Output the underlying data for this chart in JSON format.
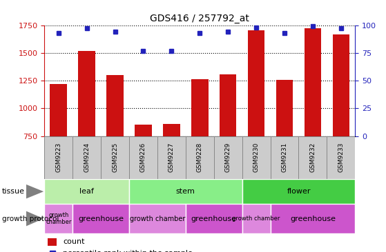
{
  "title": "GDS416 / 257792_at",
  "samples": [
    "GSM9223",
    "GSM9224",
    "GSM9225",
    "GSM9226",
    "GSM9227",
    "GSM9228",
    "GSM9229",
    "GSM9230",
    "GSM9231",
    "GSM9232",
    "GSM9233"
  ],
  "counts": [
    1220,
    1520,
    1300,
    855,
    860,
    1265,
    1305,
    1705,
    1255,
    1720,
    1665
  ],
  "percentiles": [
    93,
    97,
    94,
    77,
    77,
    93,
    94,
    98,
    93,
    99,
    97
  ],
  "ylim_left": [
    750,
    1750
  ],
  "ylim_right": [
    0,
    100
  ],
  "yticks_left": [
    750,
    1000,
    1250,
    1500,
    1750
  ],
  "yticks_right": [
    0,
    25,
    50,
    75,
    100
  ],
  "bar_color": "#cc1111",
  "dot_color": "#2222bb",
  "tissue_groups": [
    {
      "label": "leaf",
      "start": 0,
      "end": 3,
      "color": "#bbeeaa"
    },
    {
      "label": "stem",
      "start": 3,
      "end": 7,
      "color": "#88ee88"
    },
    {
      "label": "flower",
      "start": 7,
      "end": 11,
      "color": "#44cc44"
    }
  ],
  "growth_protocol_groups": [
    {
      "label": "growth\nchamber",
      "start": 0,
      "end": 1,
      "color": "#dd88dd",
      "fontsize": 6
    },
    {
      "label": "greenhouse",
      "start": 1,
      "end": 3,
      "color": "#cc55cc",
      "fontsize": 8
    },
    {
      "label": "growth chamber",
      "start": 3,
      "end": 5,
      "color": "#dd88dd",
      "fontsize": 7
    },
    {
      "label": "greenhouse",
      "start": 5,
      "end": 7,
      "color": "#cc55cc",
      "fontsize": 8
    },
    {
      "label": "growth chamber",
      "start": 7,
      "end": 8,
      "color": "#dd88dd",
      "fontsize": 6
    },
    {
      "label": "greenhouse",
      "start": 8,
      "end": 11,
      "color": "#cc55cc",
      "fontsize": 8
    }
  ],
  "legend_count_color": "#cc1111",
  "legend_percentile_color": "#2222bb",
  "left_axis_color": "#cc1111",
  "right_axis_color": "#2222bb",
  "xticklabel_bg": "#cccccc",
  "xticklabel_border": "#888888"
}
